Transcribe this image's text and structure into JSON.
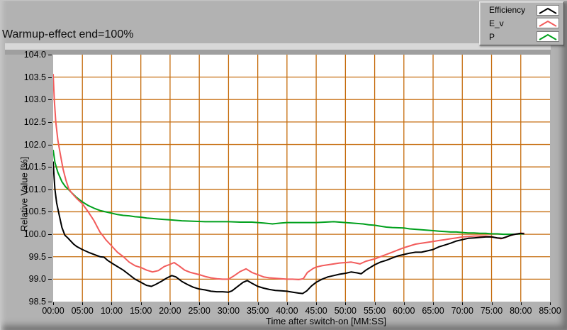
{
  "panel": {
    "background": "#b2b2b2",
    "plot_background": "#ffffff"
  },
  "chart_data": {
    "type": "line",
    "title": "Warmup-effect end=100%",
    "xlabel": "Time after switch-on [MM:SS]",
    "ylabel": "Relative Value [%]",
    "x_max_minutes": 85,
    "ylim": [
      98.5,
      104.0
    ],
    "grid": {
      "on": true,
      "color": "#c66e10",
      "x_step_minutes": 5,
      "y_step": 0.5
    },
    "legend_position": "top-right",
    "x_tick_labels": [
      "00:00",
      "05:00",
      "10:00",
      "15:00",
      "20:00",
      "25:00",
      "30:00",
      "35:00",
      "40:00",
      "45:00",
      "50:00",
      "55:00",
      "60:00",
      "65:00",
      "70:00",
      "75:00",
      "80:00",
      "85:00"
    ],
    "y_tick_labels": [
      "98.5",
      "99.0",
      "99.5",
      "100.0",
      "100.5",
      "101.0",
      "101.5",
      "102.0",
      "102.5",
      "103.0",
      "103.5",
      "104.0"
    ],
    "series": [
      {
        "name": "Efficiency",
        "color": "#000000",
        "points": [
          [
            0,
            101.62
          ],
          [
            0.15,
            101.3
          ],
          [
            0.3,
            101.0
          ],
          [
            0.6,
            100.7
          ],
          [
            1,
            100.45
          ],
          [
            1.5,
            100.15
          ],
          [
            2,
            99.98
          ],
          [
            2.5,
            99.92
          ],
          [
            3,
            99.85
          ],
          [
            3.5,
            99.78
          ],
          [
            4,
            99.73
          ],
          [
            5,
            99.66
          ],
          [
            6,
            99.6
          ],
          [
            7,
            99.55
          ],
          [
            8,
            99.5
          ],
          [
            8.7,
            99.49
          ],
          [
            9.3,
            99.42
          ],
          [
            10,
            99.36
          ],
          [
            11,
            99.28
          ],
          [
            12,
            99.2
          ],
          [
            13,
            99.1
          ],
          [
            14,
            99.0
          ],
          [
            15,
            98.93
          ],
          [
            16,
            98.86
          ],
          [
            16.8,
            98.84
          ],
          [
            17.5,
            98.88
          ],
          [
            18.5,
            98.95
          ],
          [
            19.5,
            99.03
          ],
          [
            20.3,
            99.08
          ],
          [
            21,
            99.05
          ],
          [
            22,
            98.95
          ],
          [
            23,
            98.88
          ],
          [
            24,
            98.82
          ],
          [
            25,
            98.78
          ],
          [
            26,
            98.76
          ],
          [
            27,
            98.73
          ],
          [
            28,
            98.72
          ],
          [
            29,
            98.72
          ],
          [
            30,
            98.71
          ],
          [
            30.6,
            98.74
          ],
          [
            31.5,
            98.83
          ],
          [
            32.5,
            98.93
          ],
          [
            33.2,
            98.97
          ],
          [
            34,
            98.91
          ],
          [
            35,
            98.84
          ],
          [
            36,
            98.8
          ],
          [
            37,
            98.77
          ],
          [
            38,
            98.75
          ],
          [
            39,
            98.74
          ],
          [
            40,
            98.73
          ],
          [
            41,
            98.71
          ],
          [
            42,
            98.69
          ],
          [
            42.7,
            98.68
          ],
          [
            43.4,
            98.74
          ],
          [
            44.2,
            98.85
          ],
          [
            45,
            98.93
          ],
          [
            46,
            99.0
          ],
          [
            47,
            99.05
          ],
          [
            48,
            99.08
          ],
          [
            49,
            99.11
          ],
          [
            50,
            99.13
          ],
          [
            51,
            99.16
          ],
          [
            52,
            99.14
          ],
          [
            52.7,
            99.12
          ],
          [
            53.5,
            99.2
          ],
          [
            54.5,
            99.28
          ],
          [
            55,
            99.32
          ],
          [
            56,
            99.38
          ],
          [
            57,
            99.42
          ],
          [
            58,
            99.47
          ],
          [
            59,
            99.52
          ],
          [
            60,
            99.55
          ],
          [
            61,
            99.58
          ],
          [
            62,
            99.6
          ],
          [
            63,
            99.6
          ],
          [
            64,
            99.63
          ],
          [
            65,
            99.66
          ],
          [
            66,
            99.72
          ],
          [
            67,
            99.76
          ],
          [
            68,
            99.8
          ],
          [
            69,
            99.85
          ],
          [
            70,
            99.88
          ],
          [
            71,
            99.91
          ],
          [
            72,
            99.92
          ],
          [
            73,
            99.93
          ],
          [
            74,
            99.94
          ],
          [
            75,
            99.94
          ],
          [
            76,
            99.92
          ],
          [
            76.8,
            99.91
          ],
          [
            77.5,
            99.94
          ],
          [
            78.3,
            99.98
          ],
          [
            79,
            100.0
          ],
          [
            80,
            100.02
          ],
          [
            80.6,
            100.01
          ]
        ]
      },
      {
        "name": "E_v",
        "color": "#f25c5c",
        "points": [
          [
            0,
            103.57
          ],
          [
            0.2,
            103.0
          ],
          [
            0.45,
            102.5
          ],
          [
            0.8,
            102.1
          ],
          [
            1.2,
            101.8
          ],
          [
            1.7,
            101.45
          ],
          [
            2.2,
            101.2
          ],
          [
            2.7,
            101.0
          ],
          [
            3.3,
            100.9
          ],
          [
            4,
            100.8
          ],
          [
            5,
            100.68
          ],
          [
            6,
            100.5
          ],
          [
            7,
            100.3
          ],
          [
            8,
            100.05
          ],
          [
            8.5,
            99.97
          ],
          [
            9,
            99.88
          ],
          [
            10,
            99.74
          ],
          [
            11,
            99.6
          ],
          [
            12,
            99.5
          ],
          [
            13,
            99.38
          ],
          [
            14,
            99.3
          ],
          [
            15,
            99.26
          ],
          [
            16,
            99.2
          ],
          [
            17,
            99.16
          ],
          [
            18,
            99.19
          ],
          [
            19,
            99.28
          ],
          [
            20,
            99.33
          ],
          [
            20.7,
            99.37
          ],
          [
            21.5,
            99.3
          ],
          [
            22.5,
            99.2
          ],
          [
            23.5,
            99.15
          ],
          [
            25,
            99.1
          ],
          [
            26,
            99.06
          ],
          [
            27,
            99.03
          ],
          [
            28,
            99.01
          ],
          [
            29,
            99.0
          ],
          [
            30,
            99.0
          ],
          [
            31,
            99.08
          ],
          [
            32,
            99.17
          ],
          [
            33,
            99.23
          ],
          [
            34,
            99.15
          ],
          [
            35,
            99.1
          ],
          [
            36,
            99.05
          ],
          [
            37,
            99.03
          ],
          [
            38,
            99.02
          ],
          [
            39,
            99.01
          ],
          [
            40,
            99.0
          ],
          [
            41,
            99.0
          ],
          [
            42,
            98.99
          ],
          [
            42.8,
            99.01
          ],
          [
            43.5,
            99.15
          ],
          [
            44.5,
            99.24
          ],
          [
            45,
            99.27
          ],
          [
            46,
            99.3
          ],
          [
            47,
            99.32
          ],
          [
            48,
            99.34
          ],
          [
            49,
            99.36
          ],
          [
            50,
            99.37
          ],
          [
            51,
            99.38
          ],
          [
            51.8,
            99.36
          ],
          [
            52.5,
            99.34
          ],
          [
            53.5,
            99.4
          ],
          [
            55,
            99.45
          ],
          [
            56,
            99.5
          ],
          [
            57,
            99.55
          ],
          [
            58,
            99.6
          ],
          [
            59,
            99.65
          ],
          [
            60,
            99.7
          ],
          [
            61,
            99.74
          ],
          [
            62,
            99.78
          ],
          [
            63,
            99.8
          ],
          [
            64,
            99.82
          ],
          [
            65,
            99.84
          ],
          [
            66,
            99.86
          ],
          [
            67,
            99.88
          ],
          [
            68,
            99.9
          ],
          [
            69,
            99.92
          ],
          [
            70,
            99.94
          ],
          [
            71,
            99.95
          ],
          [
            72,
            99.96
          ],
          [
            73,
            99.96
          ],
          [
            74,
            99.96
          ],
          [
            75,
            99.95
          ],
          [
            75.8,
            99.92
          ],
          [
            76.6,
            99.9
          ],
          [
            77.4,
            99.93
          ],
          [
            78.2,
            99.97
          ],
          [
            79,
            100.0
          ],
          [
            80,
            100.02
          ],
          [
            80.6,
            100.02
          ]
        ]
      },
      {
        "name": "P",
        "color": "#00a01c",
        "points": [
          [
            0,
            101.88
          ],
          [
            0.3,
            101.6
          ],
          [
            0.8,
            101.38
          ],
          [
            1.5,
            101.17
          ],
          [
            2.1,
            101.06
          ],
          [
            2.6,
            101.0
          ],
          [
            3.2,
            100.92
          ],
          [
            4,
            100.82
          ],
          [
            5,
            100.72
          ],
          [
            6,
            100.64
          ],
          [
            7,
            100.58
          ],
          [
            8,
            100.53
          ],
          [
            9,
            100.5
          ],
          [
            10,
            100.47
          ],
          [
            11,
            100.44
          ],
          [
            12,
            100.42
          ],
          [
            13,
            100.41
          ],
          [
            14,
            100.39
          ],
          [
            15,
            100.38
          ],
          [
            16,
            100.36
          ],
          [
            17,
            100.35
          ],
          [
            18,
            100.34
          ],
          [
            19,
            100.33
          ],
          [
            20,
            100.32
          ],
          [
            22,
            100.3
          ],
          [
            24,
            100.29
          ],
          [
            26,
            100.28
          ],
          [
            28,
            100.28
          ],
          [
            30,
            100.28
          ],
          [
            32,
            100.27
          ],
          [
            34,
            100.27
          ],
          [
            35,
            100.26
          ],
          [
            36,
            100.25
          ],
          [
            37.5,
            100.23
          ],
          [
            39,
            100.25
          ],
          [
            40,
            100.26
          ],
          [
            42,
            100.26
          ],
          [
            44,
            100.26
          ],
          [
            45,
            100.26
          ],
          [
            46.5,
            100.27
          ],
          [
            48,
            100.28
          ],
          [
            49,
            100.27
          ],
          [
            50,
            100.26
          ],
          [
            51,
            100.25
          ],
          [
            52,
            100.24
          ],
          [
            53,
            100.23
          ],
          [
            54,
            100.21
          ],
          [
            55,
            100.2
          ],
          [
            56,
            100.18
          ],
          [
            57,
            100.16
          ],
          [
            58,
            100.15
          ],
          [
            60,
            100.14
          ],
          [
            61,
            100.12
          ],
          [
            62,
            100.11
          ],
          [
            63,
            100.1
          ],
          [
            64,
            100.09
          ],
          [
            65,
            100.08
          ],
          [
            66,
            100.07
          ],
          [
            67,
            100.06
          ],
          [
            68,
            100.05
          ],
          [
            69,
            100.05
          ],
          [
            70,
            100.04
          ],
          [
            71,
            100.03
          ],
          [
            72,
            100.03
          ],
          [
            73,
            100.02
          ],
          [
            74,
            100.02
          ],
          [
            75,
            100.01
          ],
          [
            76,
            100.01
          ],
          [
            77,
            100.0
          ],
          [
            78,
            100.0
          ],
          [
            79,
            100.0
          ],
          [
            80,
            100.01
          ],
          [
            80.6,
            100.01
          ]
        ]
      }
    ]
  }
}
